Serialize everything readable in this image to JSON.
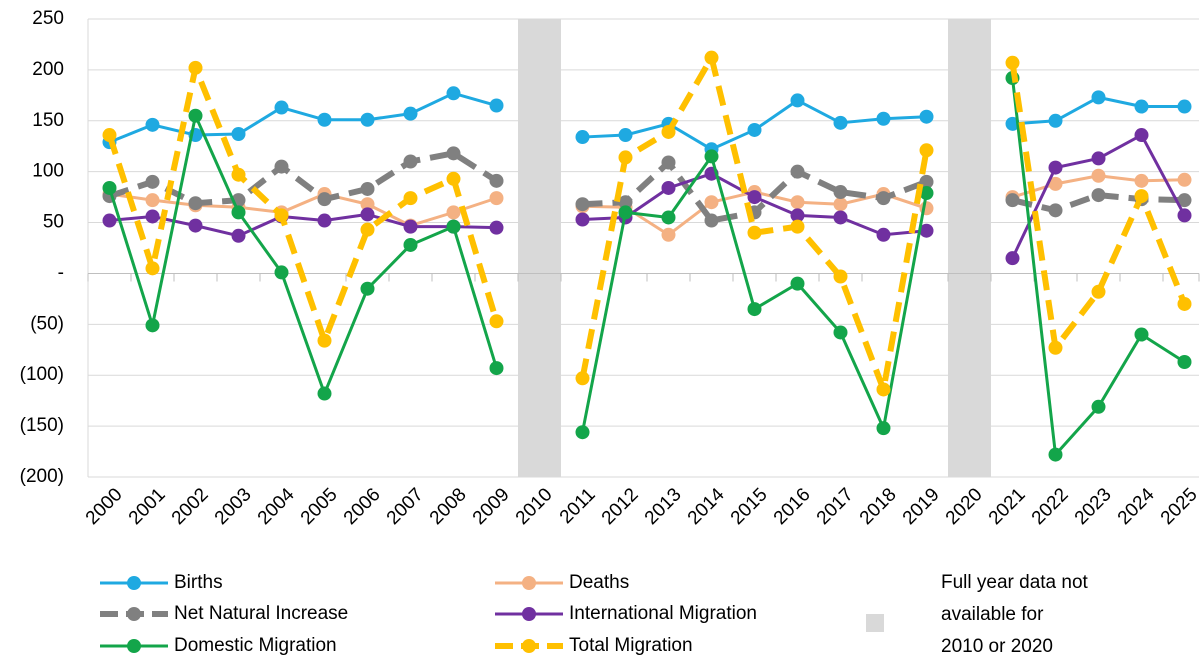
{
  "chart_data": {
    "type": "line",
    "categories": [
      "2000",
      "2001",
      "2002",
      "2003",
      "2004",
      "2005",
      "2006",
      "2007",
      "2008",
      "2009",
      "2010",
      "2011",
      "2012",
      "2013",
      "2014",
      "2015",
      "2016",
      "2017",
      "2018",
      "2019",
      "2020",
      "2021",
      "2022",
      "2023",
      "2024",
      "2025"
    ],
    "ylim": [
      -200,
      250
    ],
    "yticks": [
      {
        "value": -200,
        "label": "(200)"
      },
      {
        "value": -150,
        "label": "(150)"
      },
      {
        "value": -100,
        "label": "(100)"
      },
      {
        "value": -50,
        "label": "(50)"
      },
      {
        "value": 0,
        "label": "-"
      },
      50,
      100,
      150,
      200,
      250
    ],
    "grid": true,
    "gap_color": "#d9d9d9",
    "series": [
      {
        "name": "Births",
        "color": "#1fa9e1",
        "dashed": false,
        "values": [
          129,
          146,
          136,
          137,
          163,
          151,
          151,
          157,
          177,
          165,
          null,
          134,
          136,
          147,
          122,
          141,
          170,
          148,
          152,
          154,
          null,
          147,
          150,
          173,
          164,
          164
        ]
      },
      {
        "name": "Deaths",
        "color": "#f4b183",
        "dashed": false,
        "values": [
          78,
          72,
          67,
          65,
          60,
          78,
          68,
          47,
          60,
          74,
          null,
          66,
          65,
          38,
          70,
          80,
          70,
          68,
          78,
          64,
          null,
          75,
          88,
          96,
          91,
          92
        ]
      },
      {
        "name": "Net Natural Increase",
        "color": "#808080",
        "dashed": true,
        "values": [
          76,
          90,
          69,
          72,
          105,
          73,
          83,
          110,
          118,
          91,
          null,
          68,
          70,
          109,
          52,
          60,
          100,
          80,
          74,
          90,
          null,
          72,
          62,
          77,
          73,
          72
        ]
      },
      {
        "name": "International Migration",
        "color": "#7030a0",
        "dashed": false,
        "values": [
          52,
          56,
          47,
          37,
          56,
          52,
          58,
          46,
          46,
          45,
          null,
          53,
          55,
          84,
          98,
          75,
          57,
          55,
          38,
          42,
          null,
          15,
          104,
          113,
          136,
          57
        ]
      },
      {
        "name": "Domestic Migration",
        "color": "#13a54a",
        "dashed": false,
        "values": [
          84,
          -51,
          155,
          60,
          1,
          -118,
          -15,
          28,
          46,
          -93,
          null,
          -156,
          60,
          55,
          115,
          -35,
          -10,
          -58,
          -152,
          79,
          null,
          192,
          -178,
          -131,
          -60,
          -87
        ]
      },
      {
        "name": "Total Migration",
        "color": "#ffc000",
        "dashed": true,
        "values": [
          136,
          5,
          202,
          97,
          57,
          -66,
          43,
          74,
          93,
          -47,
          null,
          -103,
          114,
          139,
          212,
          40,
          46,
          -3,
          -114,
          121,
          null,
          207,
          -73,
          -18,
          76,
          -30
        ]
      }
    ],
    "legend_note": [
      "Full year data not",
      "available for",
      "2010 or 2020"
    ]
  }
}
